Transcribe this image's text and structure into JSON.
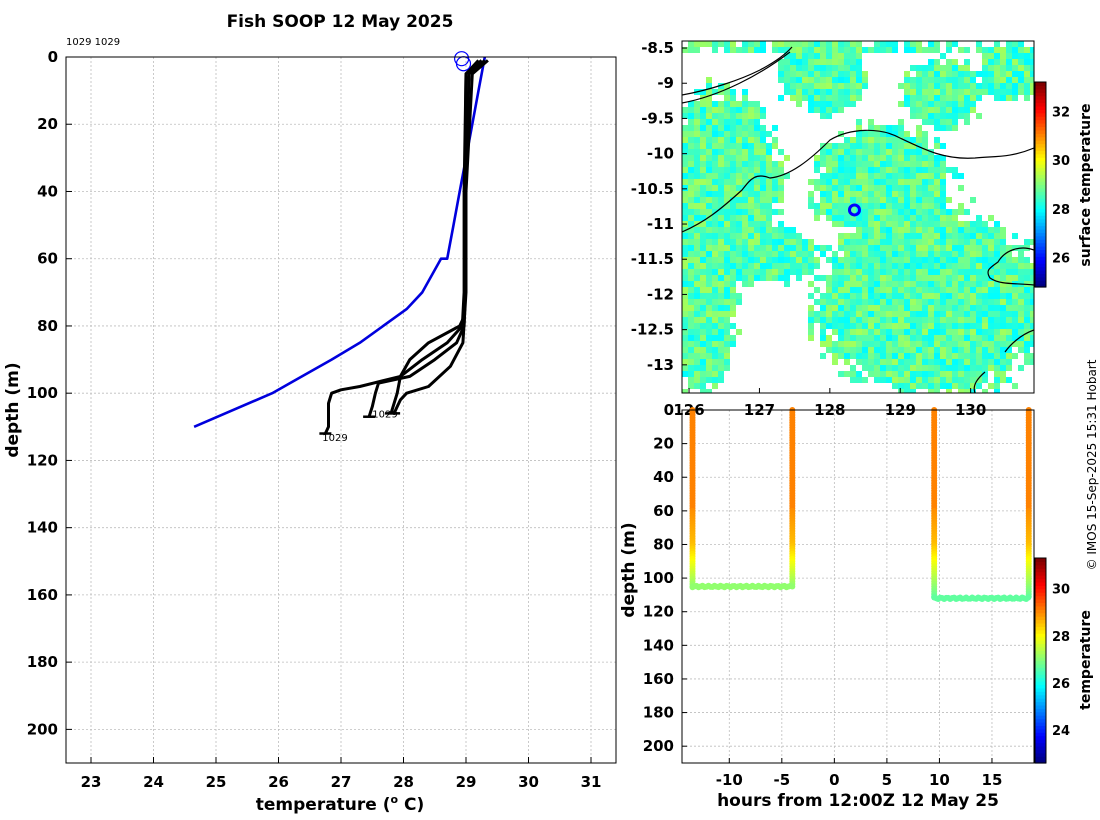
{
  "title": "Fish SOOP 12 May 2025",
  "credit": "© IMOS 15-Sep-2025 15:31 Hobart",
  "colors": {
    "profile": "#000000",
    "climatology": "#0000dd",
    "marker": "#0000ff"
  },
  "chart_data": [
    {
      "id": "profile",
      "type": "line",
      "xlabel_main": "temperature (",
      "xlabel_sup": "o",
      "xlabel_end": " C)",
      "ylabel": "depth (m)",
      "xlim": [
        22.6,
        31.4
      ],
      "ylim": [
        210,
        0
      ],
      "y_reversed": true,
      "xticks": [
        23,
        24,
        25,
        26,
        27,
        28,
        29,
        30,
        31
      ],
      "yticks": [
        0,
        20,
        40,
        60,
        80,
        100,
        120,
        140,
        160,
        180,
        200
      ],
      "grid": true,
      "top_note": "1029 1029",
      "profile_labels": [
        {
          "text": "1029",
          "x": 27.5,
          "y": 106
        },
        {
          "text": "1029",
          "x": 26.7,
          "y": 113
        }
      ],
      "surface_markers": [
        {
          "x": 28.93,
          "y": 0.5
        },
        {
          "x": 28.96,
          "y": 2
        }
      ],
      "series": [
        {
          "kind": "climatology",
          "x": [
            29.3,
            29.2,
            29.1,
            29.0,
            28.9,
            28.8,
            28.7,
            28.6,
            28.3,
            28.05,
            27.3,
            26.85,
            25.9,
            24.65
          ],
          "y": [
            0,
            10,
            20,
            30,
            40,
            50,
            60,
            60,
            70,
            75,
            85,
            90,
            100,
            110
          ]
        },
        {
          "kind": "profile",
          "x": [
            29.2,
            29.0,
            28.98,
            28.98,
            28.95,
            28.9,
            28.4,
            28.1,
            27.95,
            27.9,
            27.8
          ],
          "y": [
            1,
            5,
            40,
            75,
            78,
            80,
            85,
            90,
            95,
            100,
            106
          ]
        },
        {
          "kind": "profile",
          "x": [
            29.25,
            29.0,
            28.97,
            28.97,
            28.94,
            28.7,
            28.3,
            27.95,
            27.3,
            27.0,
            26.85,
            26.8,
            26.8,
            26.75
          ],
          "y": [
            1,
            5,
            40,
            70,
            80,
            85,
            90,
            95,
            98,
            99,
            100,
            103,
            110,
            112
          ]
        },
        {
          "kind": "profile",
          "x": [
            29.3,
            29.05,
            28.99,
            28.99,
            28.97,
            28.85,
            28.5,
            28.1,
            27.6,
            27.55,
            27.5,
            27.45
          ],
          "y": [
            1,
            5,
            40,
            68,
            80,
            85,
            90,
            95,
            97,
            100,
            104,
            107
          ]
        },
        {
          "kind": "profile",
          "x": [
            29.35,
            29.1,
            29.0,
            29.0,
            28.95,
            28.75,
            28.4,
            28.05,
            27.95,
            27.9,
            27.85
          ],
          "y": [
            1,
            5,
            40,
            70,
            85,
            92,
            98,
            100,
            102,
            104,
            106
          ]
        }
      ]
    },
    {
      "id": "map",
      "type": "heatmap",
      "yticks": [
        -8.5,
        -9,
        -9.5,
        -10,
        -10.5,
        -11,
        -11.5,
        -12,
        -12.5,
        -13
      ],
      "xticks": [
        126,
        127,
        128,
        129,
        130
      ],
      "xlim": [
        125.9,
        130.9
      ],
      "ylim": [
        -13.4,
        -8.4
      ],
      "colorbar_label": "surface temperature",
      "colorbar_ticks": [
        26,
        28,
        30,
        32
      ],
      "colorbar_range": [
        24.8,
        33.2
      ],
      "marker": {
        "lon": 128.35,
        "lat": -10.8
      }
    },
    {
      "id": "timeseries",
      "type": "scatter",
      "xlabel": "hours from 12:00Z 12 May 25",
      "ylabel": "depth (m)",
      "xlim": [
        -14.5,
        19
      ],
      "ylim": [
        210,
        0
      ],
      "xticks": [
        -10,
        -5,
        0,
        5,
        10,
        15
      ],
      "yticks": [
        0,
        20,
        40,
        60,
        80,
        100,
        120,
        140,
        160,
        180,
        200
      ],
      "colorbar_label": "temperature",
      "colorbar_ticks": [
        24,
        26,
        28,
        30
      ],
      "colorbar_range": [
        22.6,
        31.3
      ],
      "casts": [
        {
          "x_down": -13.5,
          "x_up": -4.0,
          "bottom": 105
        },
        {
          "x_down": 9.5,
          "x_up": 18.5,
          "bottom": 112
        }
      ]
    }
  ]
}
